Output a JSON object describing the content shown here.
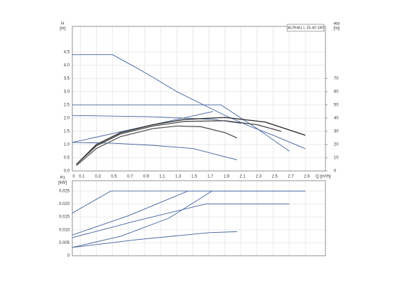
{
  "chart_data": [
    {
      "type": "line",
      "title": "ALPHA1 L 25-40 180",
      "y_label": "H",
      "y_unit": "[m]",
      "y2_label": "eta",
      "y2_unit": "[%]",
      "x_label": "Q [m³/h]",
      "xlim": [
        0,
        3.15
      ],
      "xticks": [
        0,
        0.1,
        0.3,
        0.5,
        0.7,
        0.9,
        1.1,
        1.3,
        1.5,
        1.7,
        1.9,
        2.1,
        2.3,
        2.5,
        2.7,
        2.9
      ],
      "ylim": [
        0,
        5.47
      ],
      "yticks": [
        {
          "value": 0,
          "label": "0.0"
        },
        0.5,
        {
          "value": 1,
          "label": "1.0"
        },
        1.5,
        {
          "value": 2,
          "label": "2.0"
        },
        2.5,
        {
          "value": 3,
          "label": "3.0"
        },
        3.5,
        {
          "value": 4,
          "label": "4.0"
        },
        4.5
      ],
      "y2lim": [
        0,
        109.4
      ],
      "y2ticks": [
        0,
        10,
        20,
        30,
        40,
        50,
        60,
        70
      ],
      "grid": true,
      "series": [
        {
          "color": "#3d5f9c",
          "x": [
            0,
            0.5,
            0.8,
            1.0,
            1.3,
            1.6,
            1.9,
            2.2,
            2.5,
            2.9
          ],
          "values": [
            4.4,
            4.4,
            3.9,
            3.55,
            3.0,
            2.55,
            2.1,
            1.7,
            1.35,
            0.84
          ]
        },
        {
          "color": "#3d5f9c",
          "x": [
            0,
            1.85,
            2.3,
            2.7
          ],
          "values": [
            2.5,
            2.5,
            1.6,
            0.75
          ]
        },
        {
          "color": "#3d5f9c",
          "x": [
            0,
            1.0,
            1.75,
            2.1
          ],
          "values": [
            2.1,
            2.05,
            1.95,
            1.8
          ]
        },
        {
          "color": "#3d5f9c",
          "x": [
            0,
            1.75
          ],
          "values": [
            1.08,
            2.25
          ]
        },
        {
          "color": "#3d5f9c",
          "x": [
            0,
            0.5,
            1.0,
            1.5,
            2.05
          ],
          "values": [
            1.08,
            1.05,
            0.97,
            0.85,
            0.42
          ]
        },
        {
          "color": "#222222",
          "axis": "y2",
          "x": [
            0.05,
            0.3,
            0.6,
            1.0,
            1.4,
            1.9,
            2.4,
            2.9
          ],
          "values": [
            5,
            20,
            29,
            35,
            39,
            40.5,
            37,
            27
          ]
        },
        {
          "color": "#444444",
          "axis": "y2",
          "x": [
            0.05,
            0.3,
            0.6,
            1.0,
            1.4,
            1.9,
            2.3,
            2.6
          ],
          "values": [
            5,
            19,
            28,
            34,
            37.5,
            38,
            35,
            30
          ]
        },
        {
          "color": "#555555",
          "axis": "y2",
          "x": [
            0.05,
            0.3,
            0.6,
            1.0,
            1.3,
            1.6,
            1.9,
            2.05
          ],
          "values": [
            4,
            17,
            26,
            32,
            34,
            33.5,
            29,
            25
          ]
        }
      ]
    },
    {
      "type": "line",
      "y_label": "P1",
      "y_unit": "[kW]",
      "xlim": [
        0,
        3.15
      ],
      "ylim": [
        0,
        0.029
      ],
      "yticks": [
        0,
        0.005,
        {
          "value": 0.01,
          "label": "0.010"
        },
        0.015,
        {
          "value": 0.02,
          "label": "0.020"
        },
        0.025
      ],
      "grid": true,
      "series": [
        {
          "color": "#3d5f9c",
          "x": [
            0,
            0.48,
            2.9
          ],
          "values": [
            0.0165,
            0.025,
            0.025
          ]
        },
        {
          "color": "#3d5f9c",
          "x": [
            0,
            0.7,
            1.44,
            2.9
          ],
          "values": [
            0.008,
            0.0155,
            0.025,
            0.025
          ]
        },
        {
          "color": "#3d5f9c",
          "x": [
            0,
            0.6,
            1.2,
            1.74,
            2.9
          ],
          "values": [
            0.0032,
            0.0075,
            0.0145,
            0.025,
            0.025
          ]
        },
        {
          "color": "#3d5f9c",
          "x": [
            0,
            0.8,
            1.66,
            2.7
          ],
          "values": [
            0.007,
            0.0135,
            0.02,
            0.02
          ]
        },
        {
          "color": "#3d5f9c",
          "x": [
            0,
            0.8,
            1.7,
            2.05
          ],
          "values": [
            0.0032,
            0.0062,
            0.0089,
            0.0093
          ]
        }
      ]
    }
  ]
}
